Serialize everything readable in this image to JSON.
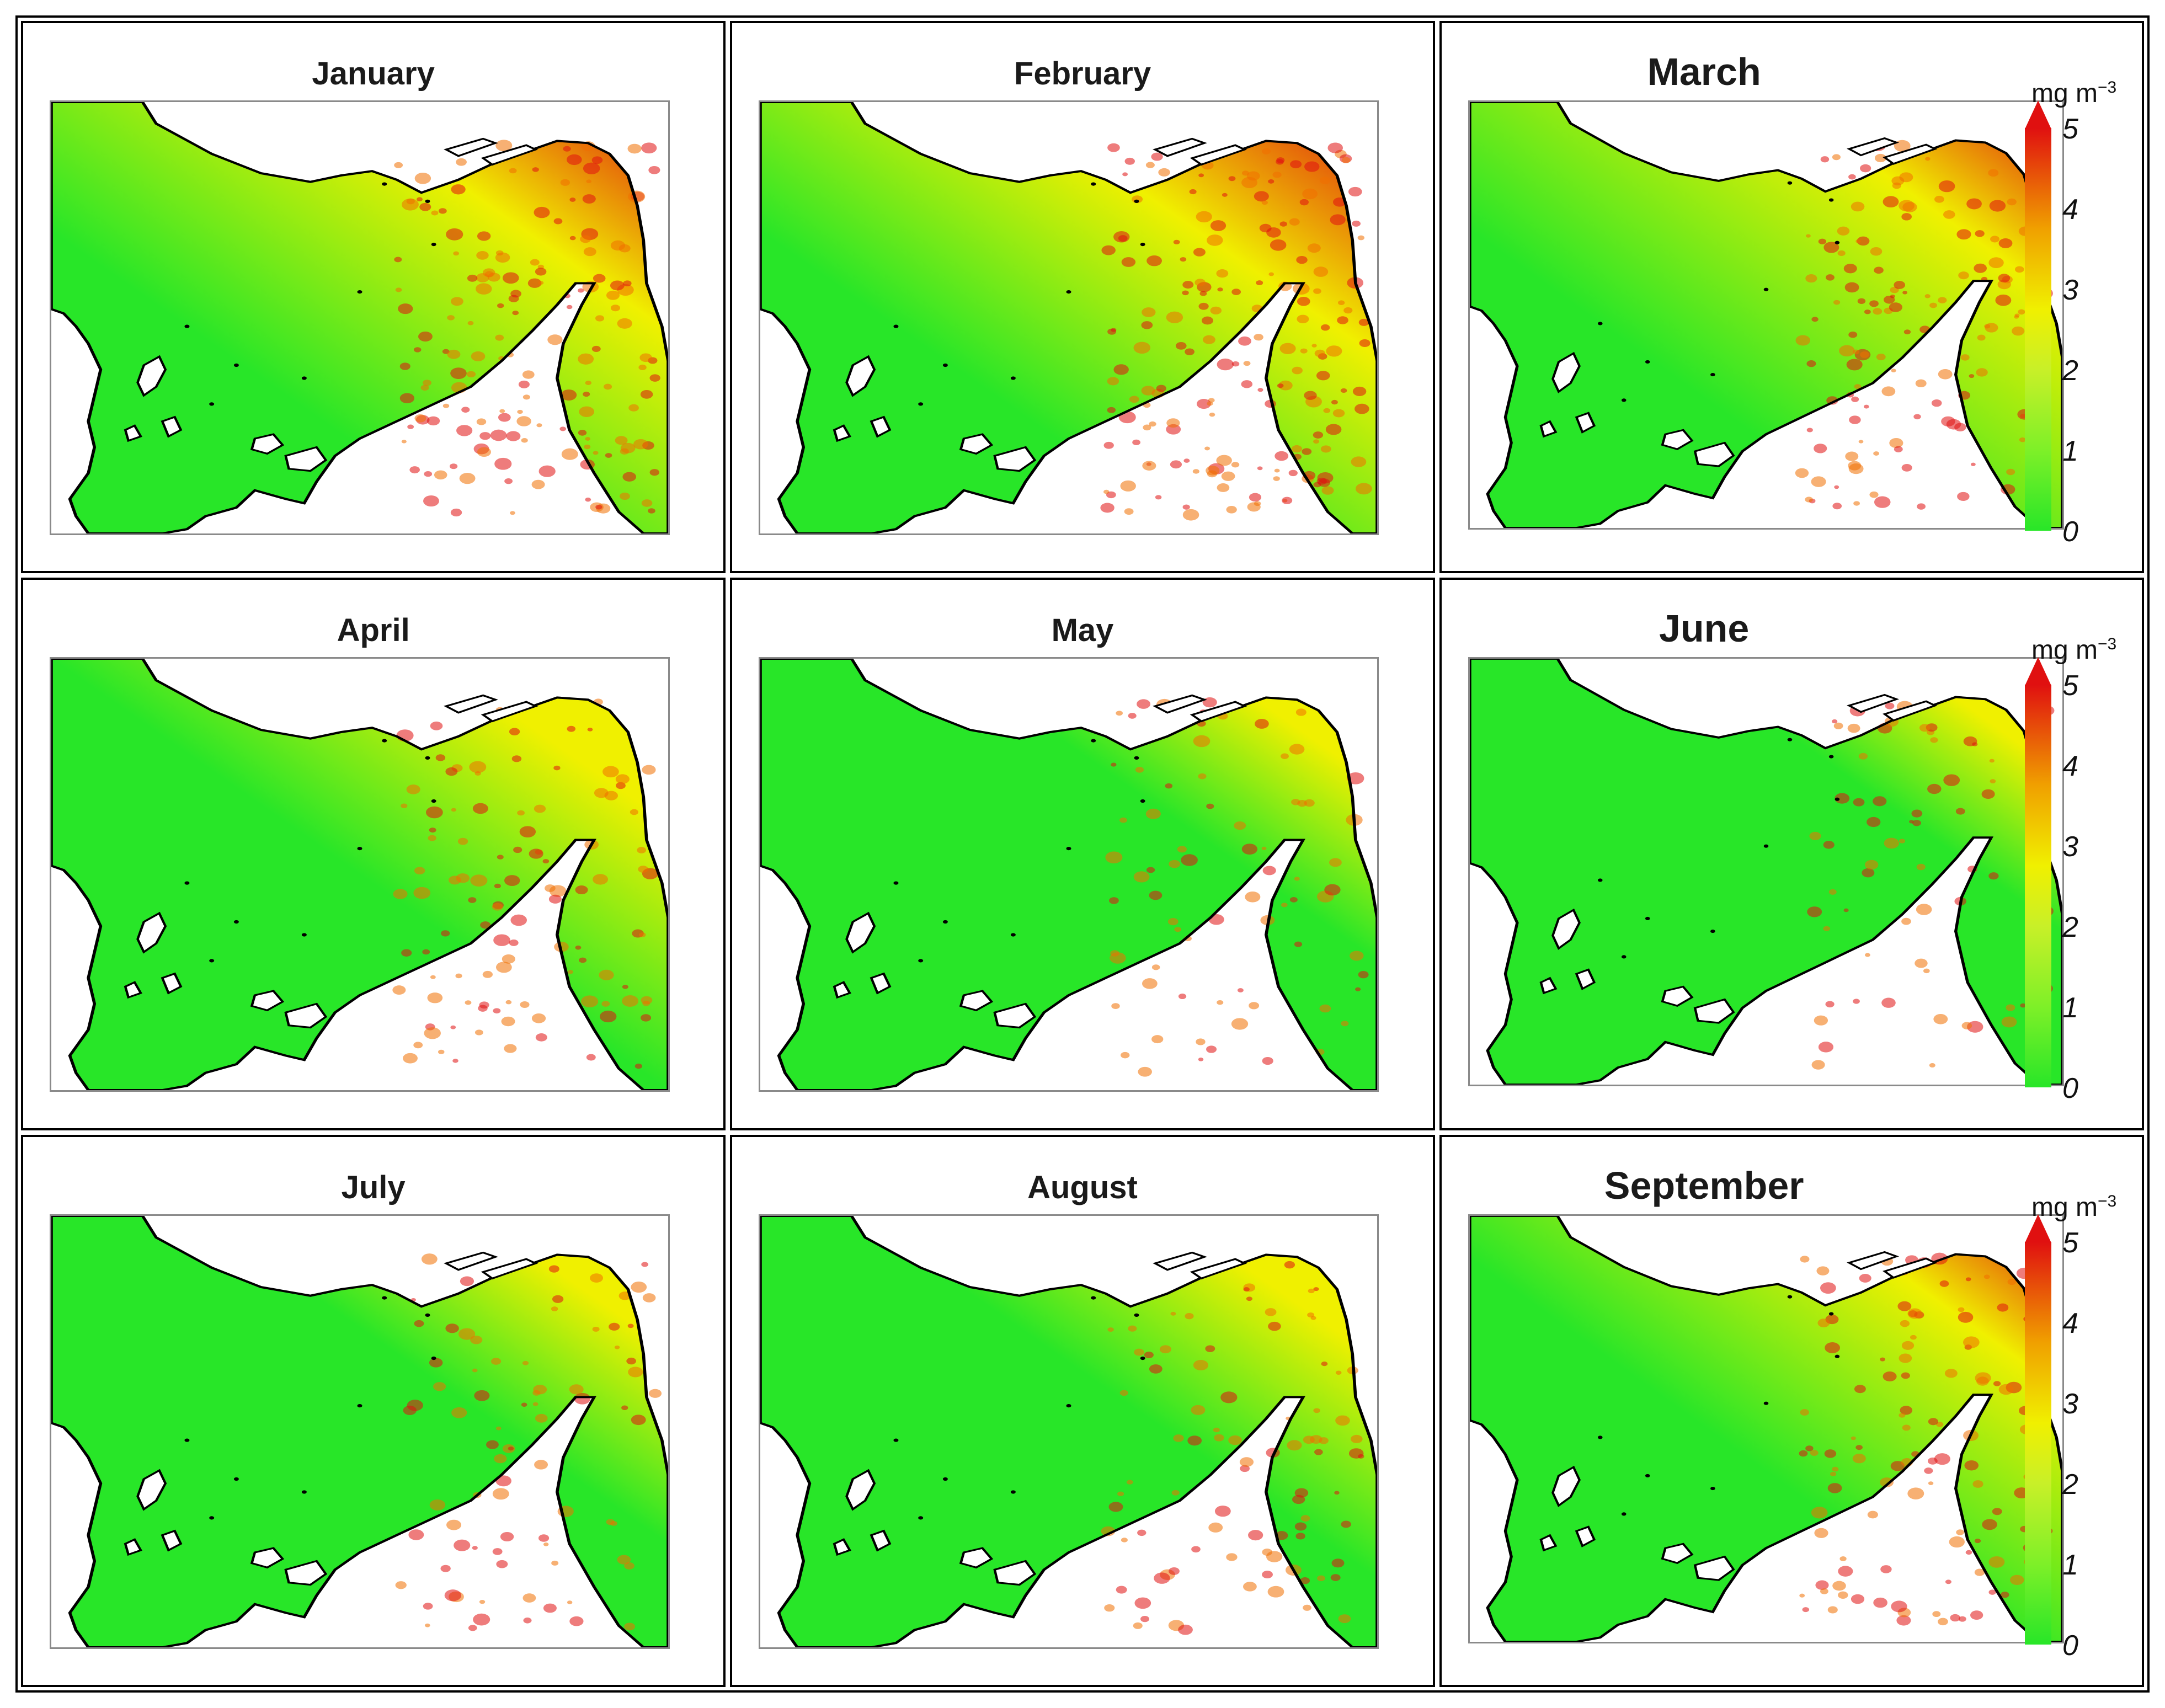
{
  "colors": {
    "low": "#28e628",
    "mid": "#f0f000",
    "high": "#e01010",
    "land": "#ffffff",
    "coast": "#000000"
  },
  "colorbar": {
    "unit": "mg m",
    "unit_exponent": "−3",
    "ticks": [
      "0",
      "1",
      "2",
      "3",
      "4",
      "5"
    ],
    "min": 0,
    "max": 5
  },
  "panels": [
    {
      "month": "January",
      "intensity": 0.55,
      "has_colorbar": false
    },
    {
      "month": "February",
      "intensity": 0.65,
      "has_colorbar": false
    },
    {
      "month": "March",
      "intensity": 0.45,
      "has_colorbar": true
    },
    {
      "month": "April",
      "intensity": 0.3,
      "has_colorbar": false
    },
    {
      "month": "May",
      "intensity": 0.15,
      "has_colorbar": false
    },
    {
      "month": "June",
      "intensity": 0.12,
      "has_colorbar": true
    },
    {
      "month": "July",
      "intensity": 0.18,
      "has_colorbar": false
    },
    {
      "month": "August",
      "intensity": 0.22,
      "has_colorbar": false
    },
    {
      "month": "September",
      "intensity": 0.35,
      "has_colorbar": true
    }
  ]
}
